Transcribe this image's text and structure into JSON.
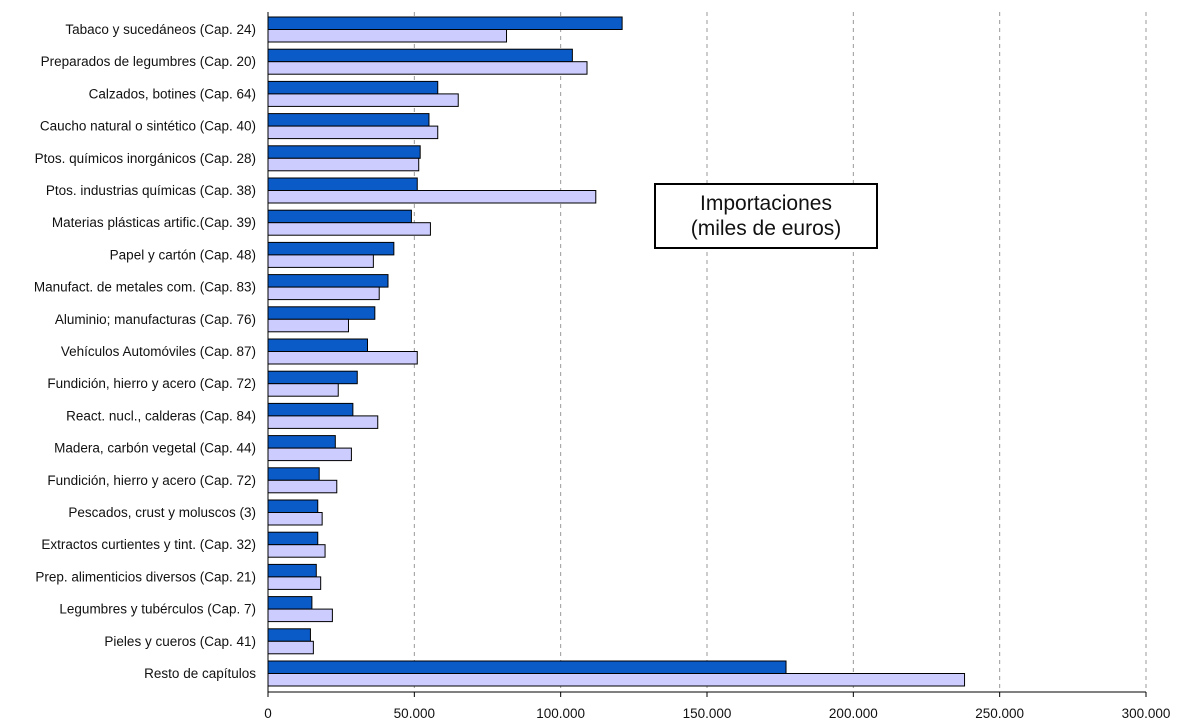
{
  "chart_data": {
    "type": "bar",
    "orientation": "horizontal",
    "title": [
      "Importaciones",
      "(miles de euros)"
    ],
    "categories": [
      "Tabaco y sucedáneos (Cap. 24)",
      "Preparados de legumbres (Cap. 20)",
      "Calzados, botines (Cap. 64)",
      "Caucho natural o sintético (Cap. 40)",
      "Ptos. químicos inorgánicos (Cap. 28)",
      "Ptos. industrias químicas (Cap. 38)",
      "Materias plásticas artific.(Cap. 39)",
      "Papel y cartón (Cap. 48)",
      "Manufact. de metales com. (Cap. 83)",
      "Aluminio; manufacturas (Cap. 76)",
      "Vehículos Automóviles (Cap. 87)",
      "Fundición, hierro y acero (Cap. 72)",
      "React. nucl., calderas (Cap. 84)",
      "Madera, carbón vegetal (Cap. 44)",
      "Fundición, hierro y acero (Cap. 72)",
      "Pescados, crust y moluscos (3)",
      "Extractos curtientes y tint. (Cap. 32)",
      "Prep. alimenticios diversos (Cap. 21)",
      "Legumbres y tubérculos (Cap. 7)",
      "Pieles y cueros (Cap. 41)",
      "Resto de capítulos"
    ],
    "series": [
      {
        "color": "#0a5ac8",
        "values": [
          121000,
          104000,
          58000,
          55000,
          52000,
          51000,
          49000,
          43000,
          41000,
          36500,
          34000,
          30500,
          29000,
          23000,
          17500,
          17000,
          17000,
          16500,
          15000,
          14500,
          177000
        ]
      },
      {
        "color": "#ccccff",
        "values": [
          81500,
          109000,
          65000,
          58000,
          51500,
          112000,
          55500,
          36000,
          38000,
          27500,
          51000,
          24000,
          37500,
          28500,
          23500,
          18500,
          19500,
          18000,
          22000,
          15500,
          238000
        ]
      }
    ],
    "xlim": [
      0,
      300000
    ],
    "xticks": [
      0,
      50000,
      100000,
      150000,
      200000,
      250000,
      300000
    ],
    "xtick_labels": [
      "0",
      "50.000",
      "100.000",
      "150.000",
      "200.000",
      "250.000",
      "300.000"
    ],
    "grid": "vertical-dashed",
    "legend": "none"
  }
}
